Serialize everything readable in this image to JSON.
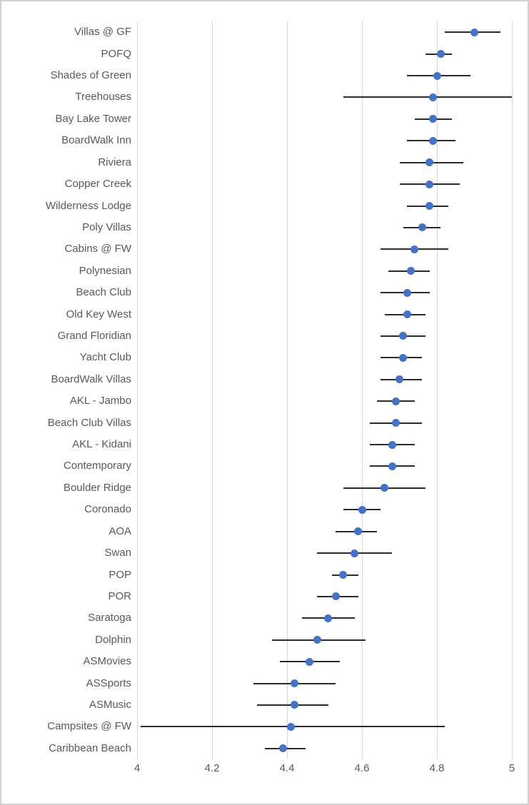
{
  "chart_data": {
    "type": "scatter",
    "subtype": "dot-plot-with-error-bars",
    "title": "",
    "xlabel": "",
    "ylabel": "",
    "xlim": [
      4,
      5
    ],
    "x_ticks": [
      4,
      4.2,
      4.4,
      4.6,
      4.8,
      5
    ],
    "x_tick_labels": [
      "4",
      "4.2",
      "4.4",
      "4.6",
      "4.8",
      "5"
    ],
    "grid": true,
    "legend": "none",
    "orientation": "horizontal",
    "series": [
      {
        "name": "resort-rating",
        "points": [
          {
            "category": "Villas @ GF",
            "value": 4.9,
            "low": 4.82,
            "high": 4.97
          },
          {
            "category": "POFQ",
            "value": 4.81,
            "low": 4.77,
            "high": 4.84
          },
          {
            "category": "Shades of Green",
            "value": 4.8,
            "low": 4.72,
            "high": 4.89
          },
          {
            "category": "Treehouses",
            "value": 4.79,
            "low": 4.55,
            "high": 5.0
          },
          {
            "category": "Bay Lake Tower",
            "value": 4.79,
            "low": 4.74,
            "high": 4.84
          },
          {
            "category": "BoardWalk Inn",
            "value": 4.79,
            "low": 4.72,
            "high": 4.85
          },
          {
            "category": "Riviera",
            "value": 4.78,
            "low": 4.7,
            "high": 4.87
          },
          {
            "category": "Copper Creek",
            "value": 4.78,
            "low": 4.7,
            "high": 4.86
          },
          {
            "category": "Wilderness Lodge",
            "value": 4.78,
            "low": 4.72,
            "high": 4.83
          },
          {
            "category": "Poly Villas",
            "value": 4.76,
            "low": 4.71,
            "high": 4.81
          },
          {
            "category": "Cabins @ FW",
            "value": 4.74,
            "low": 4.65,
            "high": 4.83
          },
          {
            "category": "Polynesian",
            "value": 4.73,
            "low": 4.67,
            "high": 4.78
          },
          {
            "category": "Beach Club",
            "value": 4.72,
            "low": 4.65,
            "high": 4.78
          },
          {
            "category": "Old Key West",
            "value": 4.72,
            "low": 4.66,
            "high": 4.77
          },
          {
            "category": "Grand Floridian",
            "value": 4.71,
            "low": 4.65,
            "high": 4.77
          },
          {
            "category": "Yacht Club",
            "value": 4.71,
            "low": 4.65,
            "high": 4.76
          },
          {
            "category": "BoardWalk Villas",
            "value": 4.7,
            "low": 4.65,
            "high": 4.76
          },
          {
            "category": "AKL - Jambo",
            "value": 4.69,
            "low": 4.64,
            "high": 4.74
          },
          {
            "category": "Beach Club Villas",
            "value": 4.69,
            "low": 4.62,
            "high": 4.76
          },
          {
            "category": "AKL - Kidani",
            "value": 4.68,
            "low": 4.62,
            "high": 4.74
          },
          {
            "category": "Contemporary",
            "value": 4.68,
            "low": 4.62,
            "high": 4.74
          },
          {
            "category": "Boulder Ridge",
            "value": 4.66,
            "low": 4.55,
            "high": 4.77
          },
          {
            "category": "Coronado",
            "value": 4.6,
            "low": 4.55,
            "high": 4.65
          },
          {
            "category": "AOA",
            "value": 4.59,
            "low": 4.53,
            "high": 4.64
          },
          {
            "category": "Swan",
            "value": 4.58,
            "low": 4.48,
            "high": 4.68
          },
          {
            "category": "POP",
            "value": 4.55,
            "low": 4.52,
            "high": 4.59
          },
          {
            "category": "POR",
            "value": 4.53,
            "low": 4.48,
            "high": 4.59
          },
          {
            "category": "Saratoga",
            "value": 4.51,
            "low": 4.44,
            "high": 4.58
          },
          {
            "category": "Dolphin",
            "value": 4.48,
            "low": 4.36,
            "high": 4.61
          },
          {
            "category": "ASMovies",
            "value": 4.46,
            "low": 4.38,
            "high": 4.54
          },
          {
            "category": "ASSports",
            "value": 4.42,
            "low": 4.31,
            "high": 4.53
          },
          {
            "category": "ASMusic",
            "value": 4.42,
            "low": 4.32,
            "high": 4.51
          },
          {
            "category": "Campsites @ FW",
            "value": 4.41,
            "low": 4.01,
            "high": 4.82
          },
          {
            "category": "Caribbean Beach",
            "value": 4.39,
            "low": 4.34,
            "high": 4.45
          }
        ]
      }
    ],
    "colors": {
      "marker": "#4472C4",
      "error_bar": "#2b2b2b",
      "gridline": "#d6d6d6",
      "text": "#595959",
      "border": "#d2d2d2",
      "background": "#ffffff"
    }
  }
}
